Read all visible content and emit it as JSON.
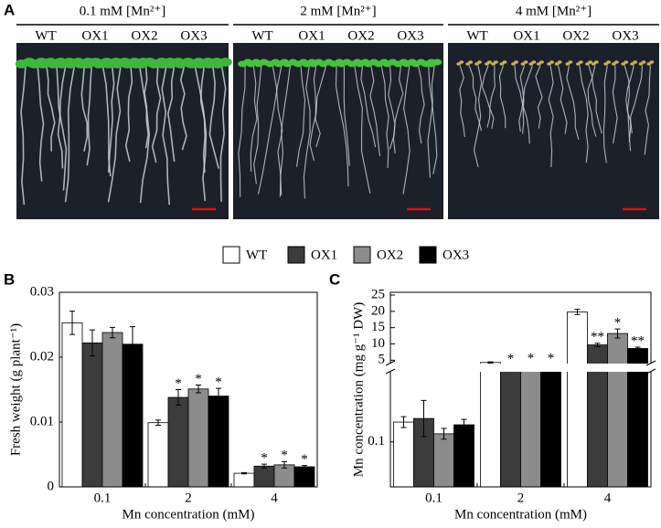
{
  "panel_a": {
    "label": "A",
    "conditions": [
      {
        "title": "0.1 mM [Mn²⁺]",
        "lanes": [
          "WT",
          "OX1",
          "OX2",
          "OX3"
        ]
      },
      {
        "title": "2 mM [Mn²⁺]",
        "lanes": [
          "WT",
          "OX1",
          "OX2",
          "OX3"
        ]
      },
      {
        "title": "4 mM [Mn²⁺]",
        "lanes": [
          "WT",
          "OX1",
          "OX2",
          "OX3"
        ]
      }
    ]
  },
  "chart_data": [
    {
      "type": "bar",
      "panel_label": "B",
      "ylabel": "Fresh weight (g plant⁻¹)",
      "xlabel": "Mn concentration (mM)",
      "categories": [
        "0.1",
        "2",
        "4"
      ],
      "series": [
        {
          "name": "WT",
          "color": "#ffffff",
          "values": [
            0.0253,
            0.0099,
            0.0021
          ],
          "errors": [
            0.0018,
            0.0004,
            0.0001
          ],
          "markers": [
            null,
            null,
            null
          ]
        },
        {
          "name": "OX1",
          "color": "#3c3c3c",
          "values": [
            0.0222,
            0.0138,
            0.0032
          ],
          "errors": [
            0.002,
            0.0012,
            0.0003
          ],
          "markers": [
            null,
            "*",
            "*"
          ]
        },
        {
          "name": "OX2",
          "color": "#8c8c8c",
          "values": [
            0.0238,
            0.0151,
            0.0034
          ],
          "errors": [
            0.0008,
            0.0006,
            0.0005
          ],
          "markers": [
            null,
            "*",
            "*"
          ]
        },
        {
          "name": "OX3",
          "color": "#000000",
          "values": [
            0.022,
            0.014,
            0.0031
          ],
          "errors": [
            0.0027,
            0.0012,
            0.0002
          ],
          "markers": [
            null,
            "*",
            "*"
          ]
        }
      ],
      "ylim": [
        0,
        0.03
      ],
      "yticks": [
        0,
        0.01,
        0.02,
        0.03
      ]
    },
    {
      "type": "broken_bar",
      "panel_label": "C",
      "ylabel": "Mn concentration (mg g⁻¹ DW)",
      "xlabel": "Mn concentration (mM)",
      "categories": [
        "0.1",
        "2",
        "4"
      ],
      "series": [
        {
          "color": "#ffffff",
          "values": [
            0.144,
            4.3,
            19.8
          ],
          "errors": [
            0.012,
            0.2,
            0.8
          ],
          "markers": [
            null,
            null,
            null
          ]
        },
        {
          "color": "#3c3c3c",
          "values": [
            0.152,
            3.3,
            9.7
          ],
          "errors": [
            0.04,
            0.2,
            0.5
          ],
          "markers": [
            null,
            "*",
            "**"
          ]
        },
        {
          "color": "#8c8c8c",
          "values": [
            0.118,
            3.4,
            13.2
          ],
          "errors": [
            0.012,
            0.2,
            1.4
          ],
          "markers": [
            null,
            "*",
            "*"
          ]
        },
        {
          "color": "#000000",
          "values": [
            0.138,
            3.4,
            8.6
          ],
          "errors": [
            0.012,
            0.2,
            0.4
          ],
          "markers": [
            null,
            "*",
            "**"
          ]
        }
      ],
      "ylim_lower": [
        0,
        0.27
      ],
      "yticks_lower": [
        0.1
      ],
      "ylim_upper": [
        2,
        25
      ],
      "yticks_upper": [
        5,
        10,
        15,
        20,
        25
      ]
    }
  ]
}
